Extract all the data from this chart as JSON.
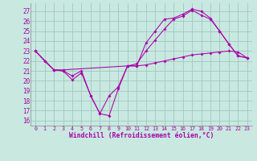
{
  "bg_color": "#c8e8e0",
  "grid_color": "#a0c8c0",
  "line_color": "#aa00aa",
  "xlim": [
    -0.5,
    23.5
  ],
  "ylim": [
    15.5,
    27.8
  ],
  "yticks": [
    16,
    17,
    18,
    19,
    20,
    21,
    22,
    23,
    24,
    25,
    26,
    27
  ],
  "xticks": [
    0,
    1,
    2,
    3,
    4,
    5,
    6,
    7,
    8,
    9,
    10,
    11,
    12,
    13,
    14,
    15,
    16,
    17,
    18,
    19,
    20,
    21,
    22,
    23
  ],
  "xlabel": "Windchill (Refroidissement éolien,°C)",
  "series": [
    {
      "x": [
        0,
        1,
        2,
        3,
        4,
        5,
        6,
        7,
        8,
        9,
        10,
        11,
        12,
        13,
        14,
        15,
        16,
        17,
        18,
        19,
        20,
        21,
        22,
        23
      ],
      "y": [
        23,
        22,
        21.1,
        21.0,
        20.1,
        20.8,
        18.5,
        16.7,
        16.5,
        19.2,
        21.5,
        21.5,
        23.8,
        25.0,
        26.2,
        26.3,
        26.7,
        27.2,
        27.0,
        26.3,
        25.0,
        23.7,
        22.5,
        22.3
      ]
    },
    {
      "x": [
        0,
        1,
        2,
        3,
        4,
        5,
        6,
        7,
        8,
        9,
        10,
        11,
        12,
        13,
        14,
        15,
        16,
        17,
        18,
        19,
        20,
        21,
        22,
        23
      ],
      "y": [
        23,
        22,
        21.1,
        21.0,
        20.5,
        21.0,
        18.5,
        16.7,
        18.5,
        19.4,
        21.5,
        21.7,
        23.0,
        24.1,
        25.2,
        26.2,
        26.5,
        27.1,
        26.6,
        26.2,
        25.0,
        23.7,
        22.5,
        22.3
      ]
    },
    {
      "x": [
        0,
        2,
        3,
        10,
        11,
        12,
        13,
        14,
        15,
        16,
        17,
        18,
        19,
        20,
        21,
        22,
        23
      ],
      "y": [
        23,
        21.1,
        21.1,
        21.5,
        21.5,
        21.6,
        21.8,
        22.0,
        22.2,
        22.4,
        22.6,
        22.7,
        22.8,
        22.9,
        23.0,
        22.9,
        22.3
      ]
    }
  ]
}
